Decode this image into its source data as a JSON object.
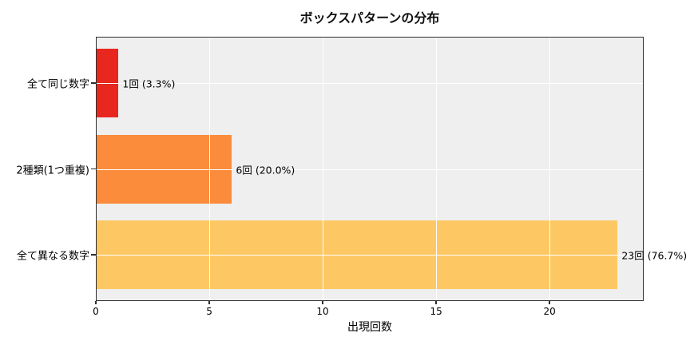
{
  "chart_data": {
    "type": "bar",
    "orientation": "horizontal",
    "title": "ボックスパターンの分布",
    "xlabel": "出現回数",
    "ylabel": "",
    "categories": [
      "全て同じ数字",
      "2種類(1つ重複)",
      "全て異なる数字"
    ],
    "values": [
      1,
      6,
      23
    ],
    "value_labels": [
      "1回 (3.3%)",
      "6回 (20.0%)",
      "23回 (76.7%)"
    ],
    "bar_colors": [
      "#e8281e",
      "#fa8c3c",
      "#fdc863"
    ],
    "xlim": [
      0,
      24.15
    ],
    "xticks": [
      0,
      5,
      10,
      15,
      20
    ],
    "grid": true,
    "grid_color": "#ffffff",
    "plot_bg": "#efefef",
    "legend_position": "none"
  }
}
